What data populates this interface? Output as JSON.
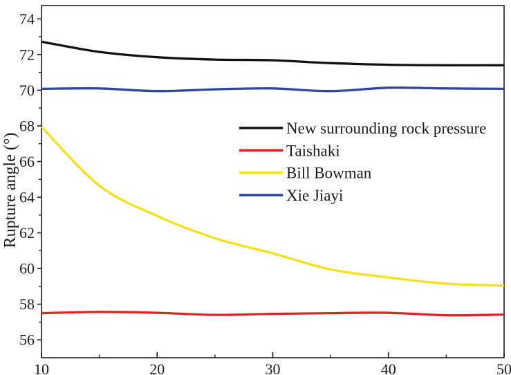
{
  "chart_data": {
    "type": "line",
    "title": "",
    "xlabel": "",
    "ylabel": "Rupture angle (°)",
    "xlim": [
      10,
      50
    ],
    "ylim": [
      55,
      74.75
    ],
    "x_major_ticks": [
      10,
      20,
      30,
      40,
      50
    ],
    "x_minor_ticks": [
      15,
      25,
      35,
      45
    ],
    "y_major_ticks": [
      56,
      58,
      60,
      62,
      64,
      66,
      68,
      70,
      72,
      74
    ],
    "y_minor_ticks": [
      57,
      59,
      61,
      63,
      65,
      67,
      69,
      71,
      73
    ],
    "grid": false,
    "legend_position": "center-right",
    "x": [
      10,
      15,
      20,
      25,
      30,
      35,
      40,
      45,
      50
    ],
    "series": [
      {
        "name": "New surrounding rock pressure",
        "color": "#111111",
        "values": [
          72.72,
          72.15,
          71.85,
          71.72,
          71.68,
          71.52,
          71.43,
          71.4,
          71.4
        ]
      },
      {
        "name": "Taishaki",
        "color": "#dd2526",
        "values": [
          57.5,
          57.57,
          57.52,
          57.4,
          57.46,
          57.5,
          57.52,
          57.38,
          57.42
        ]
      },
      {
        "name": "Bill Bowman",
        "color": "#f5e01a",
        "values": [
          67.95,
          64.65,
          62.95,
          61.7,
          60.85,
          59.95,
          59.5,
          59.15,
          59.05
        ]
      },
      {
        "name": "Xie Jiayi",
        "color": "#30489c",
        "values": [
          70.08,
          70.1,
          69.95,
          70.05,
          70.1,
          69.95,
          70.14,
          70.1,
          70.08
        ]
      }
    ],
    "legend_entries": [
      "New surrounding rock pressure",
      "Taishaki",
      "Bill Bowman",
      "Xie Jiayi"
    ]
  },
  "colors": {
    "spine": "#1a1a1a",
    "text": "#1a1a1a",
    "background": "#ffffff"
  }
}
